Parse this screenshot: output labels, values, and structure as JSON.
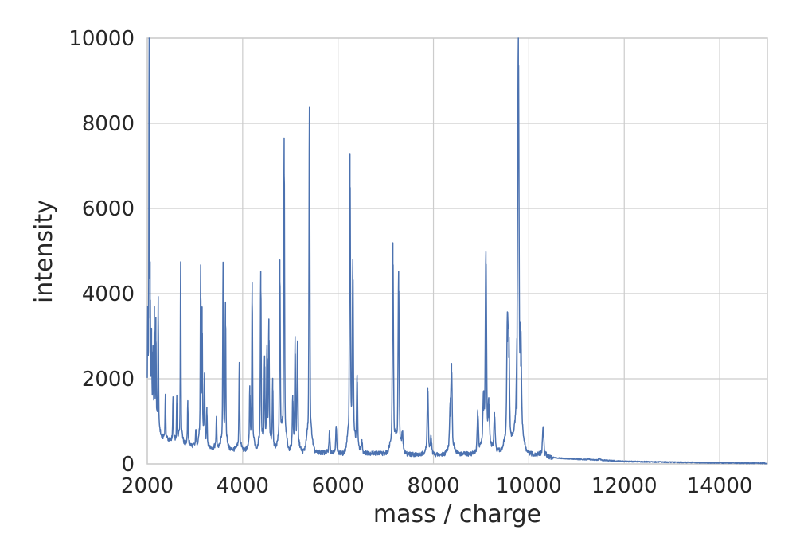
{
  "chart_data": {
    "type": "line",
    "title": "",
    "xlabel": "mass / charge",
    "ylabel": "intensity",
    "xlim": [
      2000,
      15000
    ],
    "ylim": [
      0,
      10000
    ],
    "grid": true,
    "xticks": [
      "2000",
      "4000",
      "6000",
      "8000",
      "10000",
      "12000",
      "14000"
    ],
    "yticks": [
      "0",
      "2000",
      "4000",
      "6000",
      "8000",
      "10000"
    ],
    "series": [
      {
        "color": "#4c72b0",
        "baseline": [
          [
            2000,
            1000
          ],
          [
            2100,
            900
          ],
          [
            2300,
            620
          ],
          [
            2600,
            500
          ],
          [
            3000,
            420
          ],
          [
            3500,
            370
          ],
          [
            4000,
            330
          ],
          [
            4500,
            330
          ],
          [
            5000,
            300
          ],
          [
            5500,
            280
          ],
          [
            6000,
            240
          ],
          [
            6500,
            260
          ],
          [
            7000,
            250
          ],
          [
            7500,
            230
          ],
          [
            8000,
            210
          ],
          [
            8500,
            240
          ],
          [
            9000,
            230
          ],
          [
            9500,
            300
          ],
          [
            10000,
            250
          ],
          [
            10500,
            150
          ],
          [
            11000,
            110
          ],
          [
            11500,
            90
          ],
          [
            12000,
            60
          ],
          [
            13000,
            40
          ],
          [
            14000,
            25
          ],
          [
            15000,
            15
          ]
        ],
        "peaks": [
          [
            2010,
            2800
          ],
          [
            2040,
            9550
          ],
          [
            2060,
            3420
          ],
          [
            2090,
            2400
          ],
          [
            2120,
            2200
          ],
          [
            2150,
            3150
          ],
          [
            2180,
            2900
          ],
          [
            2230,
            3500
          ],
          [
            2380,
            1550
          ],
          [
            2540,
            1500
          ],
          [
            2620,
            1450
          ],
          [
            2700,
            4300
          ],
          [
            2850,
            1350
          ],
          [
            3020,
            800
          ],
          [
            3120,
            3980
          ],
          [
            3150,
            3050
          ],
          [
            3200,
            1750
          ],
          [
            3250,
            1200
          ],
          [
            3450,
            1020
          ],
          [
            3590,
            4120
          ],
          [
            3640,
            3250
          ],
          [
            3930,
            2130
          ],
          [
            4150,
            1500
          ],
          [
            4200,
            3780
          ],
          [
            4380,
            4070
          ],
          [
            4460,
            2150
          ],
          [
            4510,
            2300
          ],
          [
            4550,
            2870
          ],
          [
            4630,
            1750
          ],
          [
            4780,
            4270
          ],
          [
            4870,
            6800
          ],
          [
            5050,
            1350
          ],
          [
            5100,
            2480
          ],
          [
            5150,
            2450
          ],
          [
            5400,
            7480
          ],
          [
            5820,
            700
          ],
          [
            5960,
            850
          ],
          [
            6250,
            6320
          ],
          [
            6310,
            3980
          ],
          [
            6400,
            1830
          ],
          [
            6500,
            500
          ],
          [
            7150,
            4640
          ],
          [
            7270,
            3970
          ],
          [
            7350,
            600
          ],
          [
            7880,
            1630
          ],
          [
            7950,
            550
          ],
          [
            8350,
            1120
          ],
          [
            8380,
            2000
          ],
          [
            8930,
            1100
          ],
          [
            9050,
            1250
          ],
          [
            9100,
            4360
          ],
          [
            9160,
            1100
          ],
          [
            9280,
            1050
          ],
          [
            9550,
            2870
          ],
          [
            9580,
            2500
          ],
          [
            9750,
            1300
          ],
          [
            9780,
            8620
          ],
          [
            9830,
            2300
          ],
          [
            10300,
            800
          ],
          [
            11250,
            120
          ],
          [
            11480,
            130
          ]
        ]
      }
    ]
  }
}
